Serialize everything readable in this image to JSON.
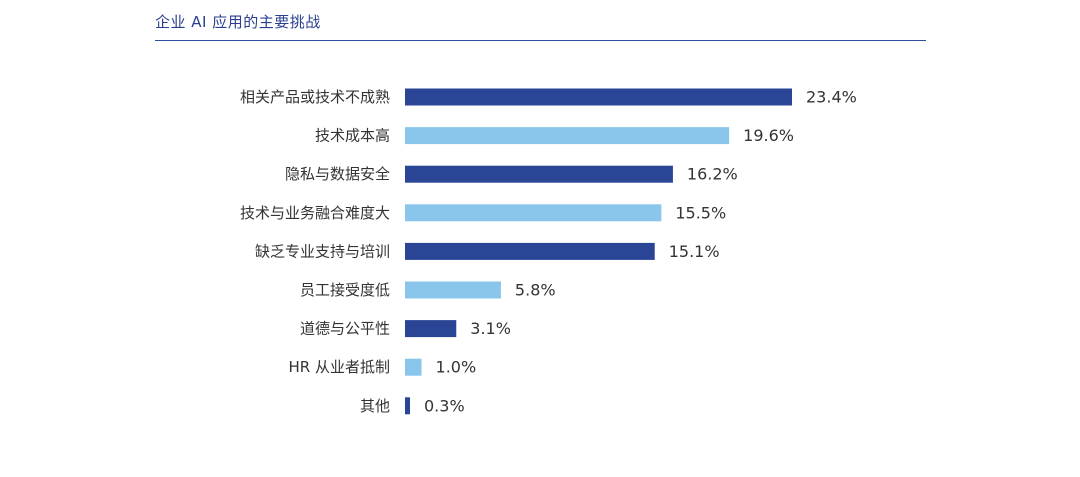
{
  "header": {
    "title": "企业 AI 应用的主要挑战"
  },
  "colors": {
    "dark": "#2b4596",
    "light": "#8ac6ec",
    "rule": "#2f4b9a"
  },
  "chart_data": {
    "type": "bar",
    "orientation": "horizontal",
    "title": "企业 AI 应用的主要挑战",
    "xlabel": "",
    "ylabel": "",
    "grid": false,
    "unit": "%",
    "xlim": [
      0,
      23.4
    ],
    "categories": [
      "相关产品或技术不成熟",
      "技术成本高",
      "隐私与数据安全",
      "技术与业务融合难度大",
      "缺乏专业支持与培训",
      "员工接受度低",
      "道德与公平性",
      "HR 从业者抵制",
      "其他"
    ],
    "values": [
      23.4,
      19.6,
      16.2,
      15.5,
      15.1,
      5.8,
      3.1,
      1.0,
      0.3
    ],
    "value_labels": [
      "23.4%",
      "19.6%",
      "16.2%",
      "15.5%",
      "15.1%",
      "5.8%",
      "3.1%",
      "1.0%",
      "0.3%"
    ],
    "bar_colors": [
      "dark",
      "light",
      "dark",
      "light",
      "dark",
      "light",
      "dark",
      "light",
      "dark"
    ]
  }
}
